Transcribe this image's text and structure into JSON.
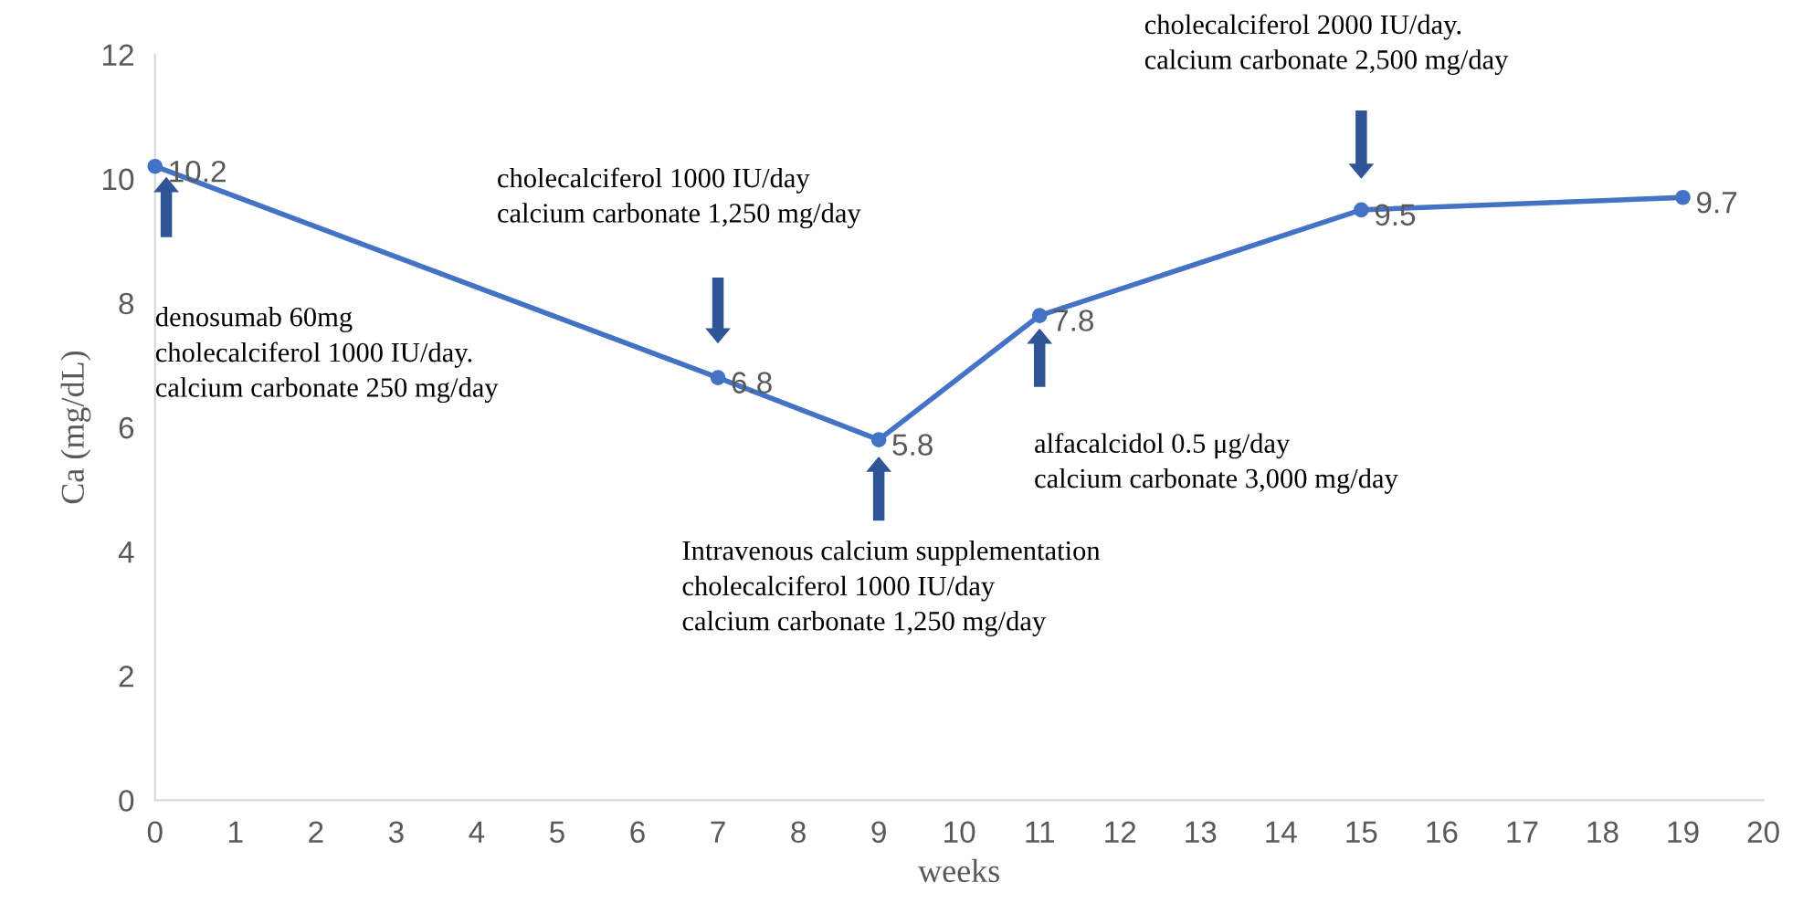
{
  "chart_data": {
    "type": "line",
    "xlabel": "weeks",
    "ylabel": "Ca (mg/dL)",
    "x": [
      0,
      7,
      9,
      11,
      15,
      19
    ],
    "series": [
      {
        "color": "#4472c4",
        "values": [
          10.2,
          6.8,
          5.8,
          7.8,
          9.5,
          9.7
        ]
      }
    ],
    "data_labels": true,
    "marker": "circle",
    "line_style": "solid",
    "grid": false,
    "legend": false,
    "xlim": [
      0,
      20
    ],
    "xticks": [
      0,
      1,
      2,
      3,
      4,
      5,
      6,
      7,
      8,
      9,
      10,
      11,
      12,
      13,
      14,
      15,
      16,
      17,
      18,
      19,
      20
    ],
    "ylim": [
      0,
      12
    ],
    "yticks": [
      0,
      2,
      4,
      6,
      8,
      10,
      12
    ],
    "annotations": [
      "denosumab 60mg\ncholecalciferol 1000 IU/day.\ncalcium carbonate 250 mg/day",
      "cholecalciferol 1000 IU/day\ncalcium carbonate 1,250 mg/day",
      "Intravenous calcium supplementation\ncholecalciferol 1000 IU/day\ncalcium carbonate 1,250 mg/day",
      "alfacalcidol 0.5 μg/day\ncalcium carbonate 3,000 mg/day",
      "cholecalciferol 2000 IU/day.\ncalcium carbonate 2,500 mg/day"
    ]
  }
}
